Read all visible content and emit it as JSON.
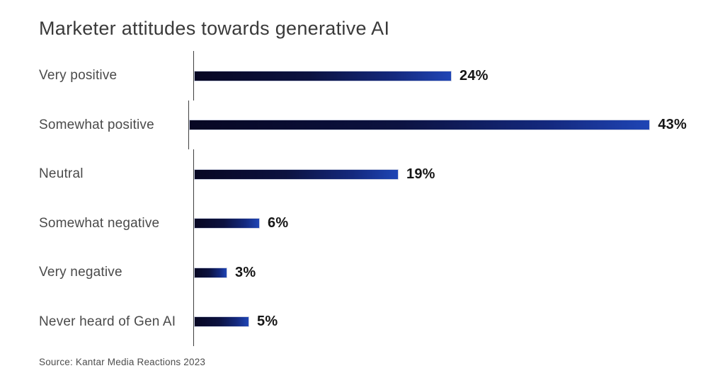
{
  "chart_data": {
    "type": "bar",
    "orientation": "horizontal",
    "title": "Marketer attitudes towards generative AI",
    "categories": [
      "Very positive",
      "Somewhat positive",
      "Neutral",
      "Somewhat negative",
      "Very negative",
      "Never heard of Gen AI"
    ],
    "values": [
      24,
      43,
      19,
      6,
      3,
      5
    ],
    "unit": "%",
    "value_labels": [
      "24%",
      "43%",
      "19%",
      "6%",
      "3%",
      "5%"
    ],
    "xlim": [
      0,
      48
    ],
    "grid": false,
    "legend": "none",
    "axis_line_color": "#3f3f3f",
    "bar_gradient_stops": [
      "#070723",
      "#0c1240",
      "#14297e",
      "#1f45b5"
    ],
    "source": "Source: Kantar Media Reactions 2023"
  }
}
